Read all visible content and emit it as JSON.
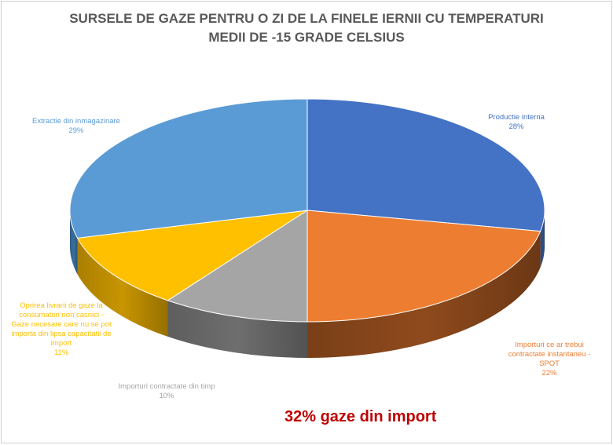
{
  "chart_data": {
    "type": "pie",
    "title_line1": "SURSELE DE GAZE PENTRU O ZI DE LA FINELE IERNII CU TEMPERATURI",
    "title_line2": "MEDII DE -15 GRADE CELSIUS",
    "slices": [
      {
        "name": "Productie interna",
        "value": 28,
        "pct": "28%",
        "color": "#4472c4",
        "side": "#2f528f"
      },
      {
        "name": "Importuri ce ar trebui contractate instantaneu - SPOT",
        "value": 22,
        "pct": "22%",
        "color": "#ed7d31",
        "side": "#8f4a1c"
      },
      {
        "name": "Importuri contractate din timp",
        "value": 10,
        "pct": "10%",
        "color": "#a5a5a5",
        "side": "#6e6e6e"
      },
      {
        "name": "Oprirea livrarii de gaze la consumatori non casnici - Gaze necesare care nu se pot importa din lipsa capacitatii de import",
        "value": 11,
        "pct": "11%",
        "color": "#ffc000",
        "side": "#c89500"
      },
      {
        "name": "Extractie din inmagazinare",
        "value": 29,
        "pct": "29%",
        "color": "#5b9bd5",
        "side": "#3a6f9e"
      }
    ],
    "annotation": "32% gaze din import"
  }
}
